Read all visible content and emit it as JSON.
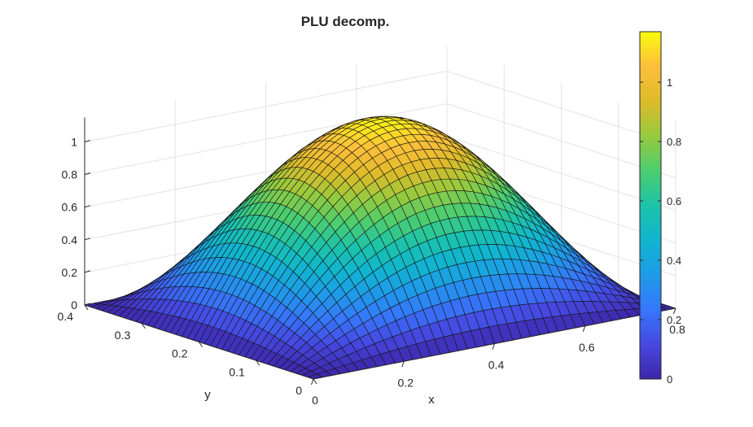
{
  "chart_data": {
    "type": "surface",
    "title": "PLU decomp.",
    "xlabel": "x",
    "ylabel": "y",
    "zlabel": "",
    "xlim": [
      0,
      0.8
    ],
    "ylim": [
      0,
      0.4
    ],
    "zlim": [
      0,
      1.15
    ],
    "function": "z = 1.15 * sin(pi*x/0.8) * sin(pi*y/0.4)",
    "peak": {
      "x": 0.4,
      "y": 0.2,
      "z": 1.15
    },
    "grid_points": {
      "x": 41,
      "y": 41
    },
    "x_ticks": [
      0,
      0.2,
      0.4,
      0.6,
      0.8
    ],
    "x_tick_labels": [
      "0",
      "0.2",
      "0.4",
      "0.6",
      "0.8"
    ],
    "y_ticks": [
      0,
      0.1,
      0.2,
      0.3,
      0.4
    ],
    "y_tick_labels": [
      "0",
      "0.1",
      "0.2",
      "0.3",
      "0.4"
    ],
    "z_ticks": [
      0,
      0.2,
      0.4,
      0.6,
      0.8,
      1
    ],
    "z_tick_labels": [
      "0",
      "0.2",
      "0.4",
      "0.6",
      "0.8",
      "1"
    ],
    "colorbar": {
      "colormap": "parula",
      "range": [
        0,
        1.17
      ],
      "ticks": [
        0,
        0.2,
        0.4,
        0.6,
        0.8,
        1
      ],
      "tick_labels": [
        "0",
        "0.2",
        "0.4",
        "0.6",
        "0.8",
        "1"
      ]
    },
    "grid": true
  }
}
